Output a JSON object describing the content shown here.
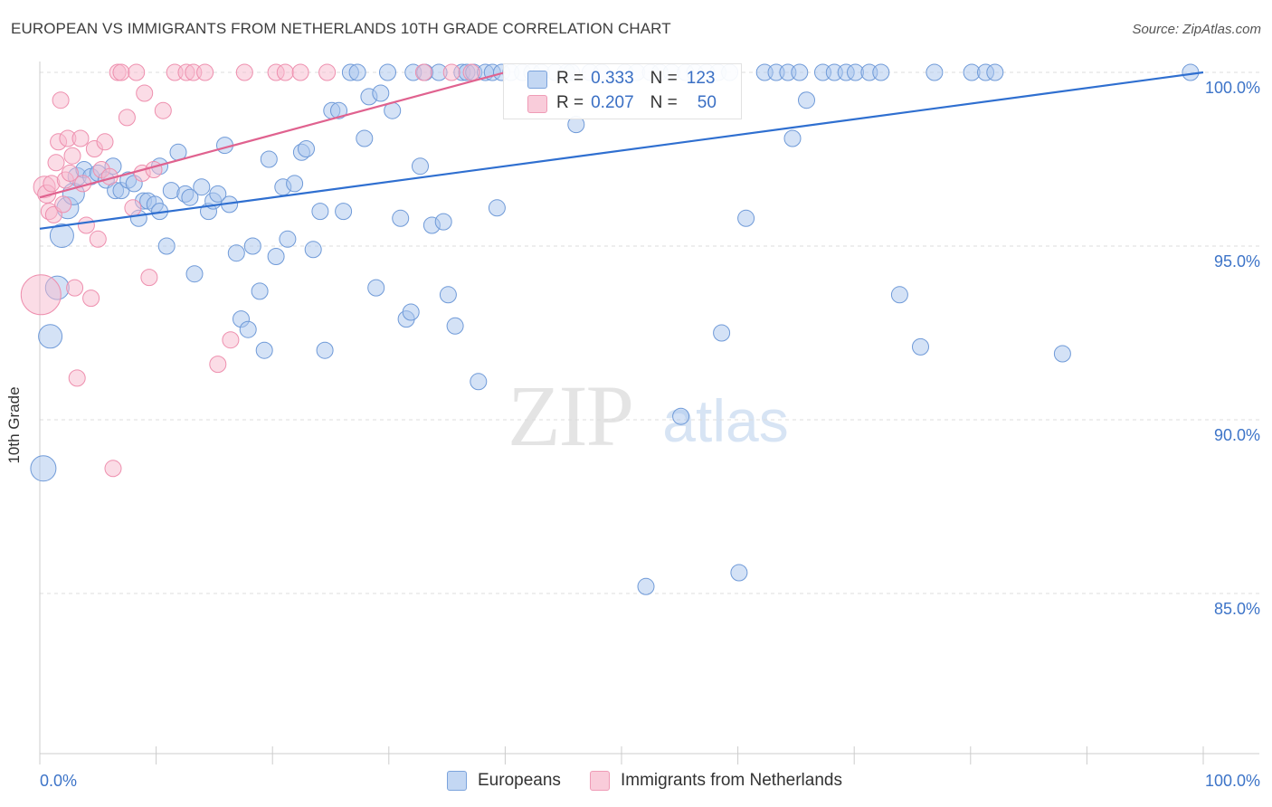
{
  "title": "EUROPEAN VS IMMIGRANTS FROM NETHERLANDS 10TH GRADE CORRELATION CHART",
  "source": "Source: ZipAtlas.com",
  "watermark": {
    "zip": "ZIP",
    "atlas": "atlas"
  },
  "legend": {
    "rows": [
      {
        "r_label": "R =",
        "r_value": "0.333",
        "n_label": "N =",
        "n_value": "123"
      },
      {
        "r_label": "R =",
        "r_value": "0.207",
        "n_label": "N =",
        "n_value": "50"
      }
    ]
  },
  "bottom_legend": {
    "europeans": "Europeans",
    "netherlands": "Immigrants from Netherlands"
  },
  "colors": {
    "blue_fill": "#a9c6ee",
    "blue_stroke": "#6f9ad8",
    "blue_line": "#2f6fd0",
    "pink_fill": "#f7b9cd",
    "pink_stroke": "#ee8fae",
    "pink_line": "#e0628f",
    "axis_label": "#3d74c8",
    "grid": "#dddddd"
  },
  "chart_data": {
    "type": "scatter",
    "title": "EUROPEAN VS IMMIGRANTS FROM NETHERLANDS 10TH GRADE CORRELATION CHART",
    "xlabel": "",
    "ylabel": "10th Grade",
    "xlim": [
      0,
      100
    ],
    "ylim": [
      80.5,
      100.5
    ],
    "x_tick_labels": [
      "0.0%",
      "100.0%"
    ],
    "y_ticks": [
      85,
      90,
      95,
      100
    ],
    "y_tick_labels": [
      "85.0%",
      "90.0%",
      "95.0%",
      "100.0%"
    ],
    "grid": true,
    "legend_position": "top-center",
    "series": [
      {
        "name": "Europeans",
        "r": 0.333,
        "n": 123,
        "trend": {
          "x0": 0,
          "y0": 95.5,
          "x1": 100,
          "y1": 100
        },
        "points": [
          [
            0.3,
            88.6,
            14
          ],
          [
            0.9,
            92.4,
            13
          ],
          [
            1.5,
            93.8,
            13
          ],
          [
            1.9,
            95.3,
            13
          ],
          [
            2.4,
            96.1,
            12
          ],
          [
            2.9,
            96.5,
            12
          ],
          [
            3.2,
            97.0,
            10
          ],
          [
            3.8,
            97.2,
            9
          ],
          [
            4.4,
            97.0,
            9
          ],
          [
            5.0,
            97.1,
            9
          ],
          [
            5.7,
            96.9,
            9
          ],
          [
            6.3,
            97.3,
            9
          ],
          [
            6.5,
            96.6,
            9
          ],
          [
            7.0,
            96.6,
            9
          ],
          [
            7.6,
            96.9,
            9
          ],
          [
            8.1,
            96.8,
            9
          ],
          [
            8.5,
            95.8,
            9
          ],
          [
            8.9,
            96.3,
            9
          ],
          [
            9.3,
            96.3,
            9
          ],
          [
            9.9,
            96.2,
            9
          ],
          [
            10.3,
            96.0,
            9
          ],
          [
            10.3,
            97.3,
            9
          ],
          [
            10.9,
            95.0,
            9
          ],
          [
            11.3,
            96.6,
            9
          ],
          [
            11.9,
            97.7,
            9
          ],
          [
            12.5,
            96.5,
            9
          ],
          [
            12.9,
            96.4,
            9
          ],
          [
            13.3,
            94.2,
            9
          ],
          [
            13.9,
            96.7,
            9
          ],
          [
            14.5,
            96.0,
            9
          ],
          [
            14.9,
            96.3,
            9
          ],
          [
            15.3,
            96.5,
            9
          ],
          [
            15.9,
            97.9,
            9
          ],
          [
            16.3,
            96.2,
            9
          ],
          [
            16.9,
            94.8,
            9
          ],
          [
            17.3,
            92.9,
            9
          ],
          [
            17.9,
            92.6,
            9
          ],
          [
            18.3,
            95.0,
            9
          ],
          [
            18.9,
            93.7,
            9
          ],
          [
            19.3,
            92.0,
            9
          ],
          [
            19.7,
            97.5,
            9
          ],
          [
            20.3,
            94.7,
            9
          ],
          [
            20.9,
            96.7,
            9
          ],
          [
            21.3,
            95.2,
            9
          ],
          [
            21.9,
            96.8,
            9
          ],
          [
            22.5,
            97.7,
            9
          ],
          [
            22.9,
            97.8,
            9
          ],
          [
            23.5,
            94.9,
            9
          ],
          [
            24.1,
            96.0,
            9
          ],
          [
            24.5,
            92.0,
            9
          ],
          [
            25.1,
            98.9,
            9
          ],
          [
            25.7,
            98.9,
            9
          ],
          [
            26.1,
            96.0,
            9
          ],
          [
            26.7,
            100.0,
            9
          ],
          [
            27.3,
            100.0,
            9
          ],
          [
            27.9,
            98.1,
            9
          ],
          [
            28.3,
            99.3,
            9
          ],
          [
            28.9,
            93.8,
            9
          ],
          [
            29.3,
            99.4,
            9
          ],
          [
            29.9,
            100.0,
            9
          ],
          [
            30.3,
            98.9,
            9
          ],
          [
            31.0,
            95.8,
            9
          ],
          [
            31.5,
            92.9,
            9
          ],
          [
            31.9,
            93.1,
            9
          ],
          [
            32.1,
            100.0,
            9
          ],
          [
            32.7,
            97.3,
            9
          ],
          [
            33.1,
            100.0,
            9
          ],
          [
            33.7,
            95.6,
            9
          ],
          [
            34.3,
            100.0,
            9
          ],
          [
            34.7,
            95.7,
            9
          ],
          [
            35.1,
            93.6,
            9
          ],
          [
            35.7,
            92.7,
            9
          ],
          [
            36.3,
            100.0,
            9
          ],
          [
            36.7,
            100.0,
            9
          ],
          [
            37.3,
            100.0,
            9
          ],
          [
            37.7,
            91.1,
            9
          ],
          [
            38.3,
            100.0,
            9
          ],
          [
            38.9,
            100.0,
            9
          ],
          [
            39.3,
            96.1,
            9
          ],
          [
            39.7,
            100.0,
            9
          ],
          [
            40.5,
            100.0,
            9
          ],
          [
            41.5,
            100.0,
            9
          ],
          [
            42.3,
            100.0,
            9
          ],
          [
            43.1,
            100.0,
            9
          ],
          [
            44.3,
            100.0,
            9
          ],
          [
            45.3,
            100.0,
            9
          ],
          [
            45.7,
            100.0,
            9
          ],
          [
            46.1,
            98.5,
            9
          ],
          [
            47.3,
            100.0,
            9
          ],
          [
            48.3,
            100.0,
            9
          ],
          [
            50.3,
            100.0,
            9
          ],
          [
            51.3,
            100.0,
            9
          ],
          [
            52.1,
            85.2,
            9
          ],
          [
            52.5,
            100.0,
            9
          ],
          [
            53.3,
            100.0,
            9
          ],
          [
            54.3,
            100.0,
            9
          ],
          [
            55.1,
            90.1,
            9
          ],
          [
            55.5,
            100.0,
            9
          ],
          [
            56.3,
            100.0,
            9
          ],
          [
            57.3,
            100.0,
            9
          ],
          [
            58.3,
            100.0,
            9
          ],
          [
            58.6,
            92.5,
            9
          ],
          [
            59.3,
            100.0,
            9
          ],
          [
            60.1,
            85.6,
            9
          ],
          [
            60.7,
            95.8,
            9
          ],
          [
            62.3,
            100.0,
            9
          ],
          [
            63.3,
            100.0,
            9
          ],
          [
            64.3,
            100.0,
            9
          ],
          [
            64.7,
            98.1,
            9
          ],
          [
            65.3,
            100.0,
            9
          ],
          [
            65.9,
            99.2,
            9
          ],
          [
            67.3,
            100.0,
            9
          ],
          [
            68.3,
            100.0,
            9
          ],
          [
            69.3,
            100.0,
            9
          ],
          [
            70.1,
            100.0,
            9
          ],
          [
            71.3,
            100.0,
            9
          ],
          [
            72.3,
            100.0,
            9
          ],
          [
            73.9,
            93.6,
            9
          ],
          [
            75.7,
            92.1,
            9
          ],
          [
            76.9,
            100.0,
            9
          ],
          [
            80.1,
            100.0,
            9
          ],
          [
            81.3,
            100.0,
            9
          ],
          [
            82.1,
            100.0,
            9
          ],
          [
            87.9,
            91.9,
            9
          ],
          [
            98.9,
            100.0,
            9
          ]
        ]
      },
      {
        "name": "Immigrants from Netherlands",
        "r": 0.207,
        "n": 50,
        "trend": {
          "x0": 0,
          "y0": 96.4,
          "x1": 40,
          "y1": 100
        },
        "points": [
          [
            0.1,
            93.6,
            22
          ],
          [
            0.4,
            96.7,
            12
          ],
          [
            0.6,
            96.5,
            10
          ],
          [
            0.8,
            96.0,
            9
          ],
          [
            1.0,
            96.8,
            9
          ],
          [
            1.2,
            95.9,
            9
          ],
          [
            1.4,
            97.4,
            9
          ],
          [
            1.6,
            98.0,
            9
          ],
          [
            1.8,
            99.2,
            9
          ],
          [
            2.0,
            96.2,
            9
          ],
          [
            2.2,
            96.9,
            9
          ],
          [
            2.4,
            98.1,
            9
          ],
          [
            2.6,
            97.1,
            9
          ],
          [
            2.8,
            97.6,
            9
          ],
          [
            3.0,
            93.8,
            9
          ],
          [
            3.2,
            91.2,
            9
          ],
          [
            3.5,
            98.1,
            9
          ],
          [
            3.7,
            96.8,
            9
          ],
          [
            4.0,
            95.6,
            9
          ],
          [
            4.4,
            93.5,
            9
          ],
          [
            4.7,
            97.8,
            9
          ],
          [
            5.0,
            95.2,
            9
          ],
          [
            5.3,
            97.2,
            9
          ],
          [
            5.6,
            98.0,
            9
          ],
          [
            6.0,
            97.0,
            9
          ],
          [
            6.3,
            88.6,
            9
          ],
          [
            6.7,
            100.0,
            9
          ],
          [
            7.0,
            100.0,
            9
          ],
          [
            7.5,
            98.7,
            9
          ],
          [
            8.0,
            96.1,
            9
          ],
          [
            8.3,
            100.0,
            9
          ],
          [
            8.8,
            97.1,
            9
          ],
          [
            9.0,
            99.4,
            9
          ],
          [
            9.4,
            94.1,
            9
          ],
          [
            9.8,
            97.2,
            9
          ],
          [
            10.6,
            98.9,
            9
          ],
          [
            11.6,
            100.0,
            9
          ],
          [
            12.6,
            100.0,
            9
          ],
          [
            13.2,
            100.0,
            9
          ],
          [
            14.2,
            100.0,
            9
          ],
          [
            15.3,
            91.6,
            9
          ],
          [
            16.4,
            92.3,
            9
          ],
          [
            17.6,
            100.0,
            9
          ],
          [
            20.3,
            100.0,
            9
          ],
          [
            21.1,
            100.0,
            9
          ],
          [
            22.4,
            100.0,
            9
          ],
          [
            24.7,
            100.0,
            9
          ],
          [
            33.0,
            100.0,
            9
          ],
          [
            35.4,
            100.0,
            9
          ],
          [
            37.1,
            100.0,
            9
          ]
        ]
      }
    ]
  }
}
